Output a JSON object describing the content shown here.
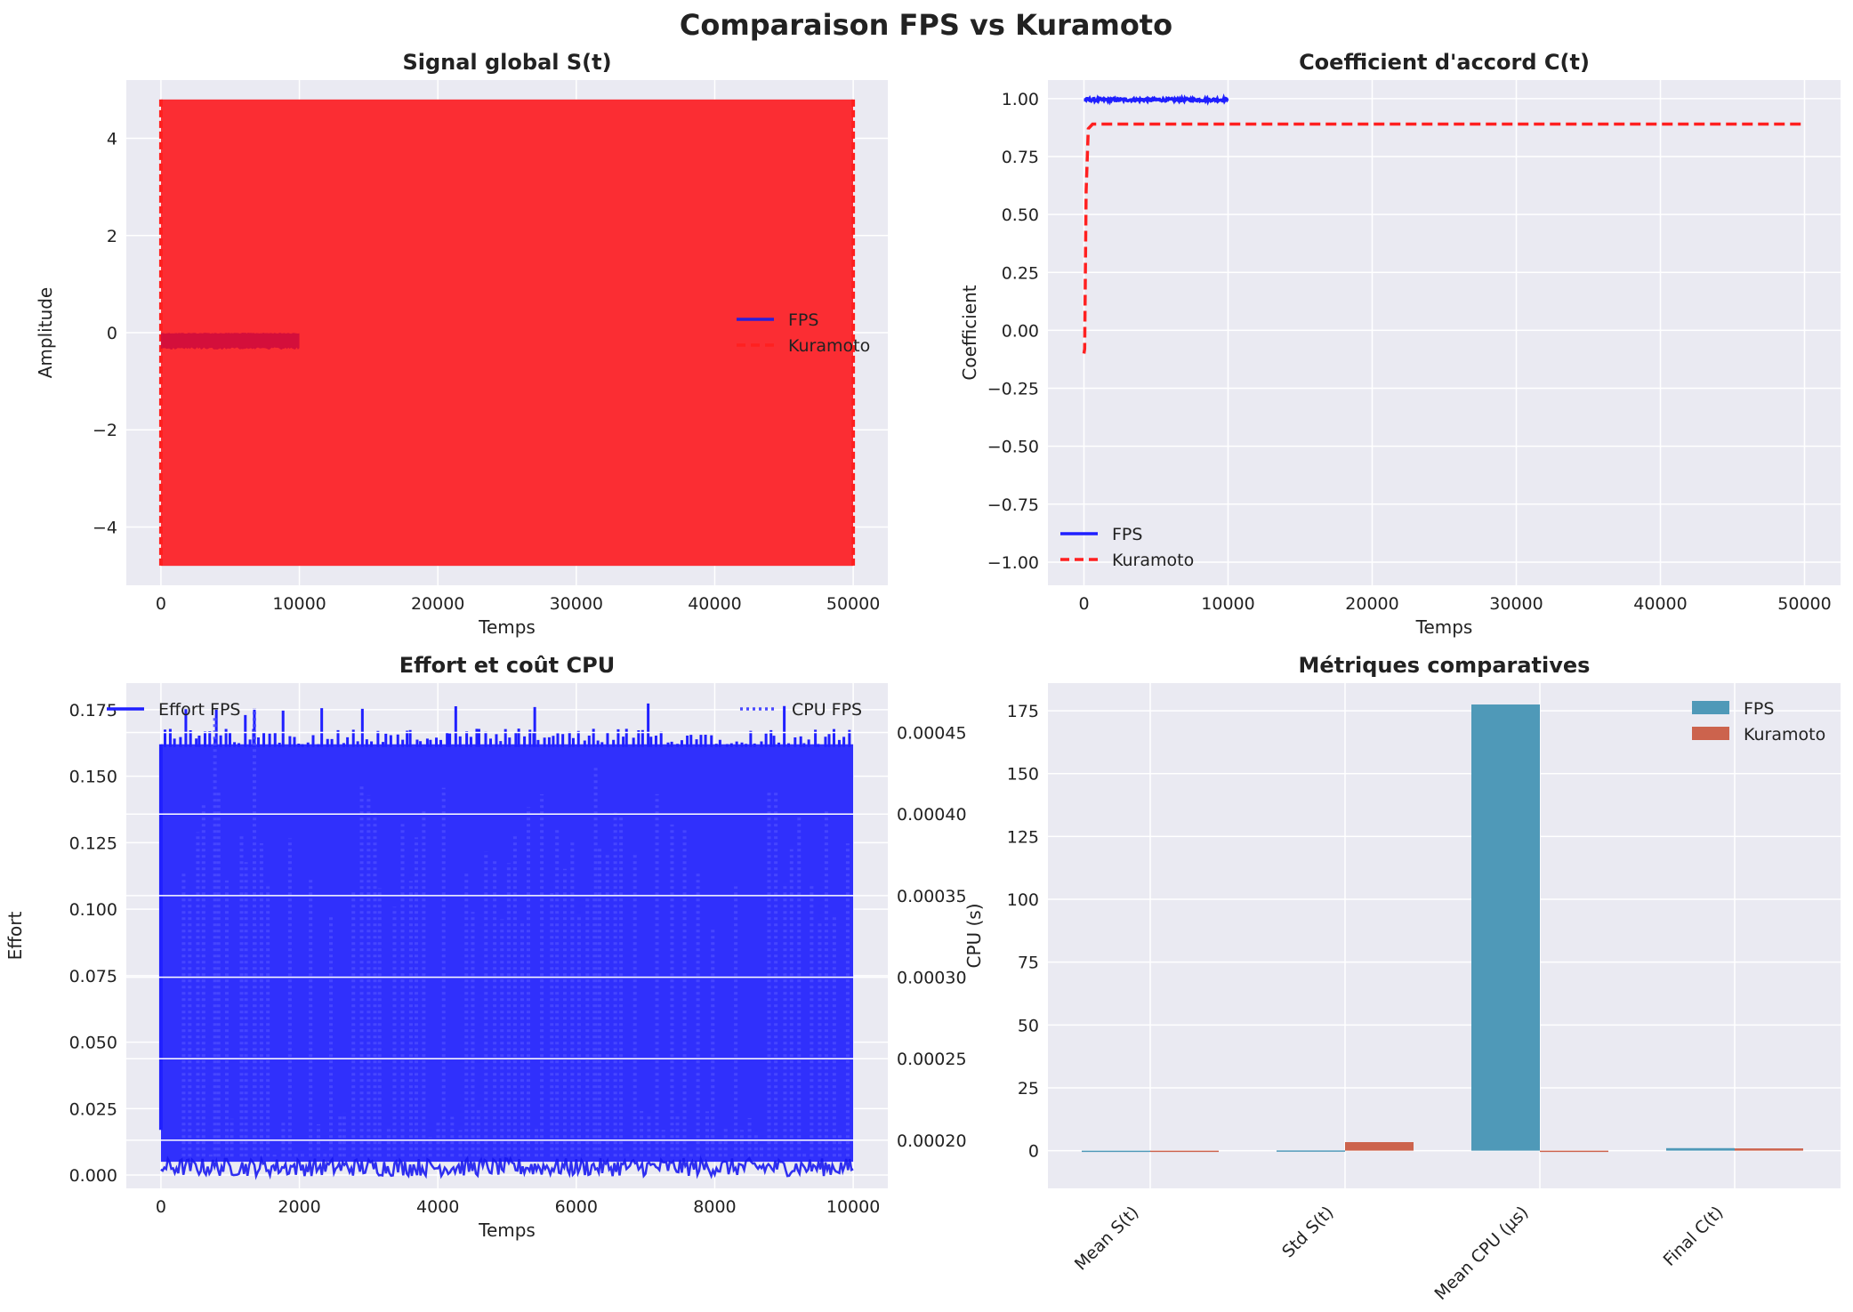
{
  "figure": {
    "suptitle": "Comparaison FPS vs Kuramoto"
  },
  "colors": {
    "fps_blue": "#1f1fff",
    "kura_red": "#ff2020",
    "bar_fps": "#4f99b8",
    "bar_kura": "#cc634d",
    "plot_bg": "#eaeaf2"
  },
  "chart_data": [
    {
      "type": "line",
      "title": "Signal global S(t)",
      "xlabel": "Temps",
      "ylabel": "Amplitude",
      "xlim": [
        -2500,
        52500
      ],
      "ylim": [
        -5.2,
        5.2
      ],
      "xticks": [
        "0",
        "10000",
        "20000",
        "30000",
        "40000",
        "50000"
      ],
      "yticks": [
        "−4",
        "−2",
        "0",
        "2",
        "4"
      ],
      "grid": true,
      "legend": "center-right",
      "series": [
        {
          "name": "FPS",
          "style": "solid",
          "x_range": [
            0,
            10000
          ],
          "envelope": [
            -0.35,
            0.0
          ]
        },
        {
          "name": "Kuramoto",
          "style": "dashed",
          "x_range": [
            0,
            50000
          ],
          "envelope": [
            -4.8,
            4.8
          ]
        }
      ]
    },
    {
      "type": "line",
      "title": "Coefficient d'accord C(t)",
      "xlabel": "Temps",
      "ylabel": "Coefficient",
      "xlim": [
        -2500,
        52500
      ],
      "ylim": [
        -1.1,
        1.08
      ],
      "xticks": [
        "0",
        "10000",
        "20000",
        "30000",
        "40000",
        "50000"
      ],
      "yticks": [
        "−1.00",
        "−0.75",
        "−0.50",
        "−0.25",
        "0.00",
        "0.25",
        "0.50",
        "0.75",
        "1.00"
      ],
      "grid": true,
      "legend": "bottom-left",
      "series": [
        {
          "name": "FPS",
          "style": "solid",
          "x": [
            0,
            2000,
            4000,
            6000,
            8000,
            10000
          ],
          "y": [
            1.0,
            0.995,
            0.998,
            0.993,
            0.997,
            0.995
          ]
        },
        {
          "name": "Kuramoto",
          "style": "dashed",
          "x": [
            0,
            50,
            150,
            300,
            600,
            50000
          ],
          "y": [
            -0.1,
            -0.08,
            0.6,
            0.87,
            0.89,
            0.89
          ]
        }
      ]
    },
    {
      "type": "line",
      "title": "Effort et coût CPU",
      "xlabel": "Temps",
      "ylabel": "Effort",
      "ylabel_right": "CPU (s)",
      "xlim": [
        -500,
        10500
      ],
      "ylim": [
        -0.005,
        0.185
      ],
      "ylim_right": [
        0.0001705,
        0.0004803
      ],
      "xticks": [
        "0",
        "2000",
        "4000",
        "6000",
        "8000",
        "10000"
      ],
      "yticks": [
        "0.000",
        "0.025",
        "0.050",
        "0.075",
        "0.100",
        "0.125",
        "0.150",
        "0.175"
      ],
      "yticks_right": [
        "0.00020",
        "0.00025",
        "0.00030",
        "0.00035",
        "0.00040",
        "0.00045"
      ],
      "grid": true,
      "legend_left": "top-left",
      "legend_right": "top-right",
      "series": [
        {
          "name": "Effort FPS",
          "style": "solid",
          "axis": "left",
          "x_range": [
            0,
            10000
          ],
          "envelope": [
            0.005,
            0.162
          ],
          "peaks_max": 0.176
        },
        {
          "name": "CPU FPS",
          "style": "dotted",
          "axis": "right",
          "x_range": [
            0,
            10000
          ],
          "baseline": [
            0.000178,
            0.000189
          ],
          "spikes_max": 0.000465
        }
      ]
    },
    {
      "type": "bar",
      "title": "Métriques comparatives",
      "categories": [
        "Mean S(t)",
        "Std S(t)",
        "Mean CPU (μs)",
        "Final C(t)"
      ],
      "ylim": [
        -15,
        186
      ],
      "yticks": [
        "0",
        "25",
        "50",
        "75",
        "100",
        "125",
        "150",
        "175"
      ],
      "grid": true,
      "legend": "top-right",
      "series": [
        {
          "name": "FPS",
          "values": [
            -0.17,
            0.1,
            177.5,
            1.0
          ]
        },
        {
          "name": "Kuramoto",
          "values": [
            0.0,
            3.4,
            0.0,
            0.89
          ]
        }
      ]
    }
  ]
}
